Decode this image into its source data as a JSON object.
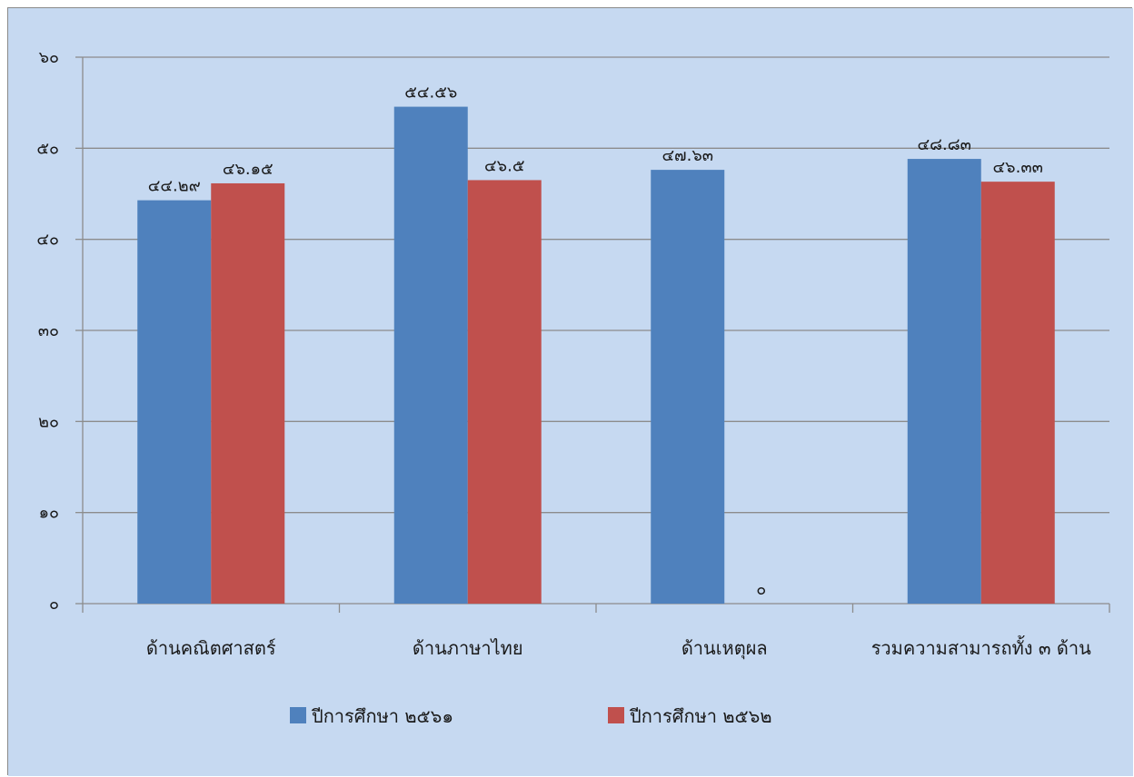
{
  "chart_data": {
    "type": "bar",
    "categories": [
      "ด้านคณิตศาสตร์",
      "ด้านภาษาไทย",
      "ด้านเหตุผล",
      "รวมความสามารถทั้ง ๓ ด้าน"
    ],
    "series": [
      {
        "name": "ปีการศึกษา ๒๕๖๑",
        "color": "#4F81BD",
        "values": [
          44.29,
          54.56,
          47.63,
          48.83
        ],
        "labels": [
          "๔๔.๒๙",
          "๕๔.๕๖",
          "๔๗.๖๓",
          "๔๘.๘๓"
        ]
      },
      {
        "name": "ปีการศึกษา ๒๕๖๒",
        "color": "#C0504D",
        "values": [
          46.15,
          46.5,
          0,
          46.33
        ],
        "labels": [
          "๔๖.๑๕",
          "๔๖.๕",
          "๐",
          "๔๖.๓๓"
        ]
      }
    ],
    "ylim": [
      0,
      60
    ],
    "yticks": [
      0,
      10,
      20,
      30,
      40,
      50,
      60
    ],
    "ytick_labels": [
      "๐",
      "๑๐",
      "๒๐",
      "๓๐",
      "๔๐",
      "๕๐",
      "๖๐"
    ],
    "title": "",
    "xlabel": "",
    "ylabel": "",
    "grid": true,
    "legend_position": "bottom",
    "background_color": "#C6D9F1",
    "gridline_color": "#8C8C8C"
  }
}
